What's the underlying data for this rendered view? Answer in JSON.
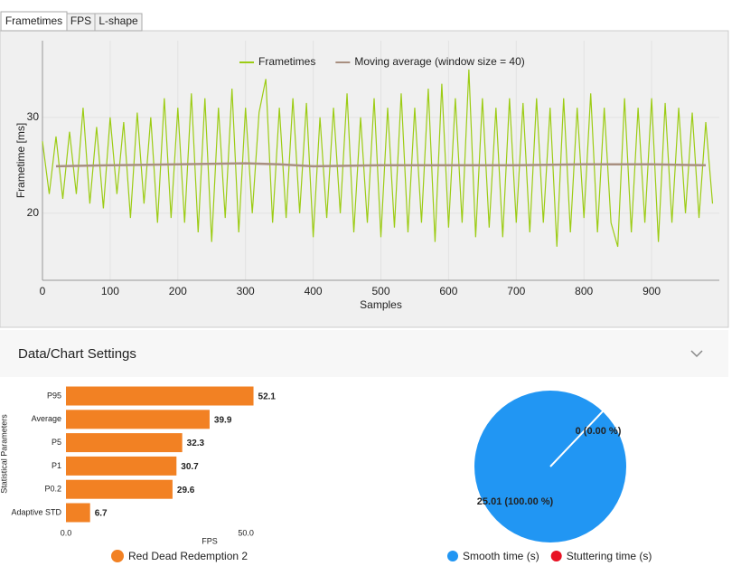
{
  "tabs": [
    "Frametimes",
    "FPS",
    "L-shape"
  ],
  "frametime_chart": {
    "type": "line",
    "ylabel": "Frametime [ms]",
    "xlabel": "Samples",
    "xlim": [
      0,
      1000
    ],
    "ylim": [
      13,
      38
    ],
    "xticks": [
      0,
      100,
      200,
      300,
      400,
      500,
      600,
      700,
      800,
      900
    ],
    "yticks": [
      20,
      30
    ],
    "grid": true,
    "series": [
      {
        "name": "Frametimes",
        "color": "#9ccc14",
        "x": [
          0,
          10,
          20,
          30,
          40,
          50,
          60,
          70,
          80,
          90,
          100,
          110,
          120,
          130,
          140,
          150,
          160,
          170,
          180,
          190,
          200,
          210,
          220,
          230,
          240,
          250,
          260,
          270,
          280,
          290,
          300,
          310,
          320,
          330,
          340,
          350,
          360,
          370,
          380,
          390,
          400,
          410,
          420,
          430,
          440,
          450,
          460,
          470,
          480,
          490,
          500,
          510,
          520,
          530,
          540,
          550,
          560,
          570,
          580,
          590,
          600,
          610,
          620,
          630,
          640,
          650,
          660,
          670,
          680,
          690,
          700,
          710,
          720,
          730,
          740,
          750,
          760,
          770,
          780,
          790,
          800,
          810,
          820,
          830,
          840,
          850,
          860,
          870,
          880,
          890,
          900,
          910,
          920,
          930,
          940,
          950,
          960,
          970,
          980,
          990
        ],
        "values": [
          27.5,
          22,
          28,
          21.5,
          28.5,
          22,
          31,
          21,
          29,
          20.5,
          30,
          22,
          29.5,
          19.5,
          30.5,
          21,
          30,
          19,
          32,
          19.5,
          31,
          19,
          32.5,
          18,
          32,
          17,
          31,
          19.5,
          33,
          18,
          31,
          20,
          30.5,
          34,
          19,
          31,
          19.5,
          32,
          20,
          31.5,
          17.5,
          30,
          19.5,
          31,
          20,
          32.5,
          18,
          30,
          19,
          32,
          17.5,
          31,
          18.5,
          32.5,
          18,
          31,
          19,
          33,
          17,
          33.5,
          18.5,
          32,
          19,
          35,
          17.5,
          32,
          18.5,
          31,
          17.5,
          32,
          19,
          31.5,
          18,
          32,
          19,
          31,
          16.5,
          32,
          18,
          31,
          19.5,
          32.5,
          18,
          31,
          19,
          16.5,
          32,
          18,
          31,
          19,
          32,
          17,
          31.5,
          19,
          31,
          20,
          30.5,
          19.5,
          29.5,
          21
        ]
      },
      {
        "name": "Moving average (window size = 40)",
        "color": "#a88f80",
        "x": [
          20,
          100,
          200,
          300,
          350,
          400,
          500,
          600,
          700,
          800,
          900,
          980
        ],
        "values": [
          24.9,
          25.0,
          25.1,
          25.2,
          25.1,
          24.9,
          25.0,
          25.0,
          25.0,
          25.1,
          25.1,
          25.0
        ]
      }
    ]
  },
  "settings_title": "Data/Chart Settings",
  "bar_chart": {
    "type": "bar",
    "ylabel": "Statistical Parameters",
    "xlabel": "FPS",
    "categories": [
      "P95",
      "Average",
      "P5",
      "P1",
      "P0.2",
      "Adaptive STD"
    ],
    "series": [
      {
        "name": "Red Dead Redemption 2",
        "color": "#f28123",
        "values": [
          52.1,
          39.9,
          32.3,
          30.7,
          29.6,
          6.7
        ]
      }
    ],
    "xlim": [
      0,
      60
    ],
    "xticks": [
      {
        "value": 0,
        "label": "0.0"
      },
      {
        "value": 50,
        "label": "50.0"
      }
    ]
  },
  "pie_chart": {
    "type": "pie",
    "categories": [
      "Smooth time (s)",
      "Stuttering time (s)"
    ],
    "colors": [
      "#2196f3",
      "#e81123"
    ],
    "values": [
      25.01,
      0
    ],
    "value_labels": [
      "25.01 (100.00 %)",
      "0 (0.00 %)"
    ]
  }
}
